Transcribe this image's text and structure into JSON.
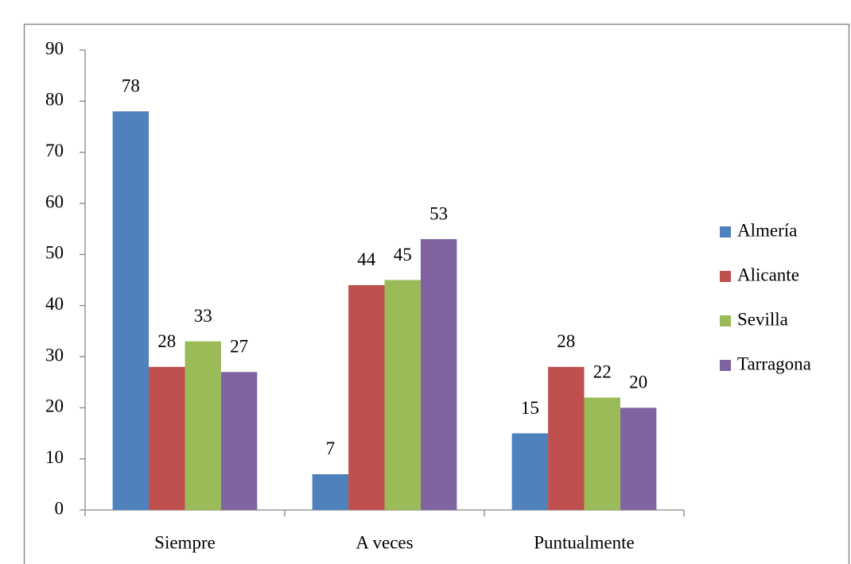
{
  "chart_data": {
    "type": "bar",
    "categories": [
      "Siempre",
      "A veces",
      "Puntualmente"
    ],
    "series": [
      {
        "name": "Almería",
        "color": "#4f81bd",
        "values": [
          78,
          7,
          15
        ]
      },
      {
        "name": "Alicante",
        "color": "#c0504d",
        "values": [
          28,
          44,
          28
        ]
      },
      {
        "name": "Sevilla",
        "color": "#9bbb59",
        "values": [
          33,
          45,
          22
        ]
      },
      {
        "name": "Tarragona",
        "color": "#8064a2",
        "values": [
          27,
          53,
          20
        ]
      }
    ],
    "ylim": [
      0,
      90
    ],
    "yticks": [
      0,
      10,
      20,
      30,
      40,
      50,
      60,
      70,
      80,
      90
    ],
    "grid": false,
    "legend": "right",
    "data_labels": true
  }
}
